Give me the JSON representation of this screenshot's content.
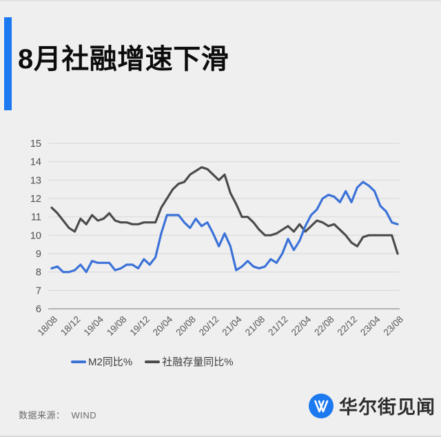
{
  "header": {
    "title": "8月社融增速下滑"
  },
  "accent_color": "#1c79f0",
  "footer": {
    "source_label": "数据来源：",
    "source_value": "WIND",
    "brand": "华尔街见闻"
  },
  "chart_data": {
    "type": "line",
    "title": "",
    "xlabel": "",
    "ylabel": "",
    "x_start": "18/08",
    "x_end": "23/08",
    "x_frequency": "monthly",
    "x_tick_labels": [
      "18/08",
      "18/12",
      "19/04",
      "19/08",
      "19/12",
      "20/04",
      "20/08",
      "20/12",
      "21/04",
      "21/08",
      "21/12",
      "22/04",
      "22/08",
      "22/12",
      "23/04",
      "23/08"
    ],
    "x_tick_every_n_months": 4,
    "ylim": [
      6,
      15
    ],
    "yticks": [
      15,
      14,
      13,
      12,
      11,
      10,
      9,
      8,
      7,
      6
    ],
    "grid": true,
    "gridline_color": "#d9d9d9",
    "axis_line_color": "#9e9e9e",
    "legend_position": "bottom-left",
    "series": [
      {
        "name": "M2同比%",
        "color": "#3b72d8",
        "values": [
          8.2,
          8.3,
          8.0,
          8.0,
          8.1,
          8.4,
          8.0,
          8.6,
          8.5,
          8.5,
          8.5,
          8.1,
          8.2,
          8.4,
          8.4,
          8.2,
          8.7,
          8.4,
          8.8,
          10.1,
          11.1,
          11.1,
          11.1,
          10.7,
          10.4,
          10.9,
          10.5,
          10.7,
          10.1,
          9.4,
          10.1,
          9.4,
          8.1,
          8.3,
          8.6,
          8.3,
          8.2,
          8.3,
          8.7,
          8.5,
          9.0,
          9.8,
          9.2,
          9.7,
          10.5,
          11.1,
          11.4,
          12.0,
          12.2,
          12.1,
          11.8,
          12.4,
          11.8,
          12.6,
          12.9,
          12.7,
          12.4,
          11.6,
          11.3,
          10.7,
          10.6
        ]
      },
      {
        "name": "社融存量同比%",
        "color": "#4b4b4b",
        "values": [
          11.5,
          11.2,
          10.8,
          10.4,
          10.2,
          10.9,
          10.6,
          11.1,
          10.8,
          10.9,
          11.2,
          10.8,
          10.7,
          10.7,
          10.6,
          10.6,
          10.7,
          10.7,
          10.7,
          11.5,
          12.0,
          12.5,
          12.8,
          12.9,
          13.3,
          13.5,
          13.7,
          13.6,
          13.3,
          13.0,
          13.3,
          12.3,
          11.7,
          11.0,
          11.0,
          10.7,
          10.3,
          10.0,
          10.0,
          10.1,
          10.3,
          10.5,
          10.2,
          10.6,
          10.2,
          10.5,
          10.8,
          10.7,
          10.5,
          10.6,
          10.3,
          10.0,
          9.6,
          9.4,
          9.9,
          10.0,
          10.0,
          10.0,
          10.0,
          10.0,
          9.0
        ]
      }
    ]
  }
}
